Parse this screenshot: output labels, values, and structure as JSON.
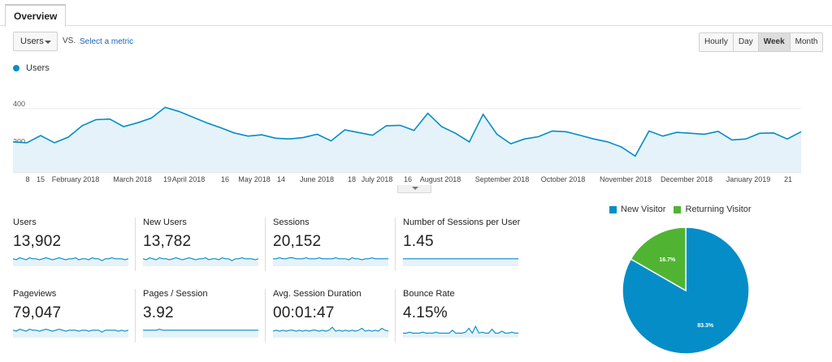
{
  "tabs": {
    "overview": "Overview"
  },
  "controls": {
    "metric_selected": "Users",
    "vs": "VS.",
    "select_metric": "Select a metric",
    "periods": [
      "Hourly",
      "Day",
      "Week",
      "Month"
    ],
    "active_period": "Week"
  },
  "colors": {
    "series": "#058dc7",
    "fill": "#e5f2f9",
    "new_visitor": "#058dc7",
    "returning_visitor": "#50b432",
    "grid": "#eeeeee"
  },
  "chart_data": [
    {
      "type": "line",
      "series_name": "Users",
      "ylim": [
        100,
        600
      ],
      "yticks": [
        200,
        400,
        600
      ],
      "x_tick_labels": [
        "8",
        "15",
        "February 2018",
        "March 2018",
        "19",
        "April 2018",
        "16",
        "May 2018",
        "14",
        "June 2018",
        "18",
        "July 2018",
        "16",
        "August 2018",
        "September 2018",
        "October 2018",
        "November 2018",
        "December 2018",
        "January 2019",
        "21"
      ],
      "values": [
        225,
        220,
        258,
        220,
        250,
        310,
        342,
        345,
        305,
        325,
        350,
        407,
        385,
        355,
        325,
        300,
        272,
        255,
        262,
        244,
        240,
        248,
        265,
        230,
        288,
        274,
        260,
        310,
        312,
        285,
        375,
        305,
        270,
        225,
        370,
        265,
        215,
        240,
        252,
        282,
        278,
        260,
        240,
        225,
        198,
        150,
        282,
        255,
        275,
        270,
        265,
        280,
        235,
        240,
        270,
        272,
        240,
        278
      ]
    },
    {
      "type": "pie",
      "legend": [
        "New Visitor",
        "Returning Visitor"
      ],
      "values": [
        83.3,
        16.7
      ],
      "labels": [
        "83.3%",
        "16.7%"
      ]
    }
  ],
  "metrics": [
    {
      "label": "Users",
      "value": "13,902",
      "spark": [
        6,
        5,
        7,
        6,
        5,
        7,
        6,
        6,
        5,
        6,
        7,
        6,
        5,
        6,
        7,
        6,
        5,
        6,
        6,
        7,
        5,
        6,
        6,
        5,
        7,
        6,
        6,
        4,
        6,
        6,
        7,
        6,
        6,
        6,
        5,
        6
      ]
    },
    {
      "label": "New Users",
      "value": "13,782",
      "spark": [
        6,
        5,
        7,
        6,
        5,
        7,
        6,
        6,
        5,
        6,
        7,
        6,
        5,
        6,
        7,
        6,
        5,
        6,
        6,
        7,
        5,
        6,
        6,
        5,
        7,
        6,
        6,
        4,
        6,
        6,
        7,
        6,
        6,
        6,
        5,
        6
      ]
    },
    {
      "label": "Sessions",
      "value": "20,152",
      "spark": [
        6,
        6,
        7,
        6,
        6,
        7,
        7,
        6,
        6,
        6,
        7,
        6,
        6,
        6,
        7,
        6,
        6,
        6,
        6,
        7,
        6,
        6,
        6,
        5,
        7,
        6,
        6,
        5,
        6,
        6,
        7,
        6,
        6,
        6,
        6,
        6
      ]
    },
    {
      "label": "Number of Sessions per User",
      "value": "1.45",
      "spark": [
        6,
        6,
        6,
        6,
        6,
        6,
        6,
        6,
        6,
        6,
        6,
        6,
        6,
        6,
        6,
        6,
        6,
        6,
        6,
        6,
        6,
        6,
        6,
        6,
        6,
        6,
        6,
        6,
        6,
        6,
        6,
        6,
        6,
        6,
        6,
        6
      ]
    },
    {
      "label": "Pageviews",
      "value": "79,047",
      "spark": [
        6,
        5,
        7,
        6,
        5,
        7,
        6,
        6,
        5,
        6,
        7,
        6,
        5,
        6,
        7,
        6,
        5,
        6,
        6,
        6,
        5,
        6,
        6,
        5,
        6,
        6,
        6,
        4,
        6,
        6,
        6,
        6,
        5,
        6,
        5,
        6
      ]
    },
    {
      "label": "Pages / Session",
      "value": "3.92",
      "spark": [
        6,
        6,
        6,
        6,
        6,
        7,
        6,
        6,
        6,
        6,
        6,
        6,
        6,
        6,
        6,
        6,
        6,
        6,
        6,
        6,
        6,
        6,
        6,
        6,
        6,
        6,
        6,
        6,
        6,
        6,
        6,
        6,
        6,
        6,
        6,
        6
      ]
    },
    {
      "label": "Avg. Session Duration",
      "value": "00:01:47",
      "spark": [
        5,
        6,
        5,
        6,
        5,
        6,
        6,
        5,
        6,
        5,
        6,
        5,
        6,
        6,
        5,
        6,
        5,
        6,
        9,
        5,
        6,
        5,
        6,
        5,
        6,
        5,
        6,
        8,
        5,
        6,
        5,
        6,
        5,
        8,
        6,
        5
      ]
    },
    {
      "label": "Bounce Rate",
      "value": "4.15%",
      "spark": [
        3,
        3,
        4,
        3,
        3,
        3,
        4,
        3,
        3,
        3,
        4,
        3,
        3,
        3,
        3,
        6,
        3,
        3,
        3,
        4,
        8,
        3,
        10,
        3,
        4,
        3,
        3,
        7,
        3,
        3,
        5,
        3,
        3,
        4,
        3,
        3
      ]
    }
  ],
  "pie_legend": {
    "new": "New Visitor",
    "returning": "Returning Visitor"
  },
  "icons": {
    "dropdown": "caret-down-icon",
    "collapse": "caret-down-icon"
  }
}
